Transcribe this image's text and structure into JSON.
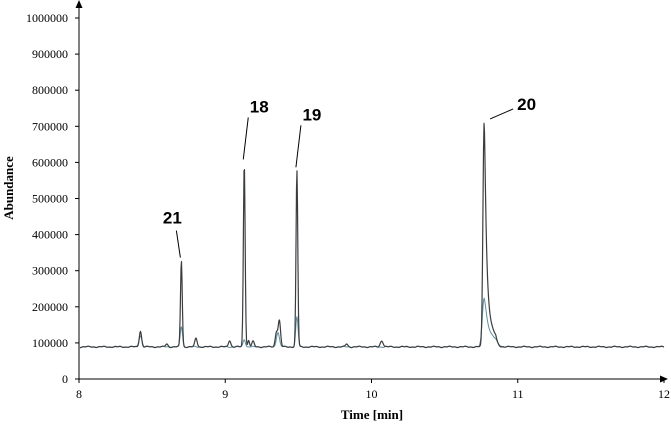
{
  "chart_data": {
    "type": "line",
    "xlabel": "Time [min]",
    "ylabel": "Abundance",
    "xlim": [
      8,
      12
    ],
    "ylim": [
      0,
      1000000
    ],
    "x_ticks": [
      "8",
      "9",
      "10",
      "11",
      "12"
    ],
    "y_ticks": [
      "0",
      "100000",
      "200000",
      "300000",
      "400000",
      "500000",
      "600000",
      "700000",
      "800000",
      "900000",
      "1000000"
    ],
    "grid": false,
    "baseline": 89000,
    "series": [
      {
        "color": "#3a3d40",
        "width": 1.2,
        "peaks": [
          {
            "x": 8.42,
            "y": 133000,
            "w": 0.008
          },
          {
            "x": 8.6,
            "y": 97000,
            "w": 0.008
          },
          {
            "x": 8.7,
            "y": 328000,
            "w": 0.006
          },
          {
            "x": 8.8,
            "y": 113000,
            "w": 0.008
          },
          {
            "x": 9.03,
            "y": 107000,
            "w": 0.008
          },
          {
            "x": 9.13,
            "y": 600000,
            "w": 0.006
          },
          {
            "x": 9.16,
            "y": 107000,
            "w": 0.006
          },
          {
            "x": 9.19,
            "y": 104000,
            "w": 0.008
          },
          {
            "x": 9.35,
            "y": 130000,
            "w": 0.008
          },
          {
            "x": 9.37,
            "y": 162000,
            "w": 0.008
          },
          {
            "x": 9.49,
            "y": 578000,
            "w": 0.006
          },
          {
            "x": 9.83,
            "y": 97000,
            "w": 0.008
          },
          {
            "x": 10.07,
            "y": 106000,
            "w": 0.01
          },
          {
            "x": 10.77,
            "y": 712000,
            "w": 0.008,
            "tail": 0.025
          }
        ]
      },
      {
        "color": "#5f8fa0",
        "width": 1.0,
        "peaks": [
          {
            "x": 8.42,
            "y": 120000,
            "w": 0.01
          },
          {
            "x": 8.7,
            "y": 145000,
            "w": 0.008
          },
          {
            "x": 9.13,
            "y": 110000,
            "w": 0.008
          },
          {
            "x": 9.36,
            "y": 130000,
            "w": 0.01
          },
          {
            "x": 9.49,
            "y": 172000,
            "w": 0.008
          },
          {
            "x": 10.77,
            "y": 225000,
            "w": 0.012,
            "tail": 0.03
          }
        ]
      }
    ],
    "annotations": [
      {
        "text": "21",
        "x": 8.7,
        "y": 328000
      },
      {
        "text": "18",
        "x": 9.13,
        "y": 600000
      },
      {
        "text": "19",
        "x": 9.49,
        "y": 578000
      },
      {
        "text": "20",
        "x": 10.77,
        "y": 712000
      }
    ]
  }
}
